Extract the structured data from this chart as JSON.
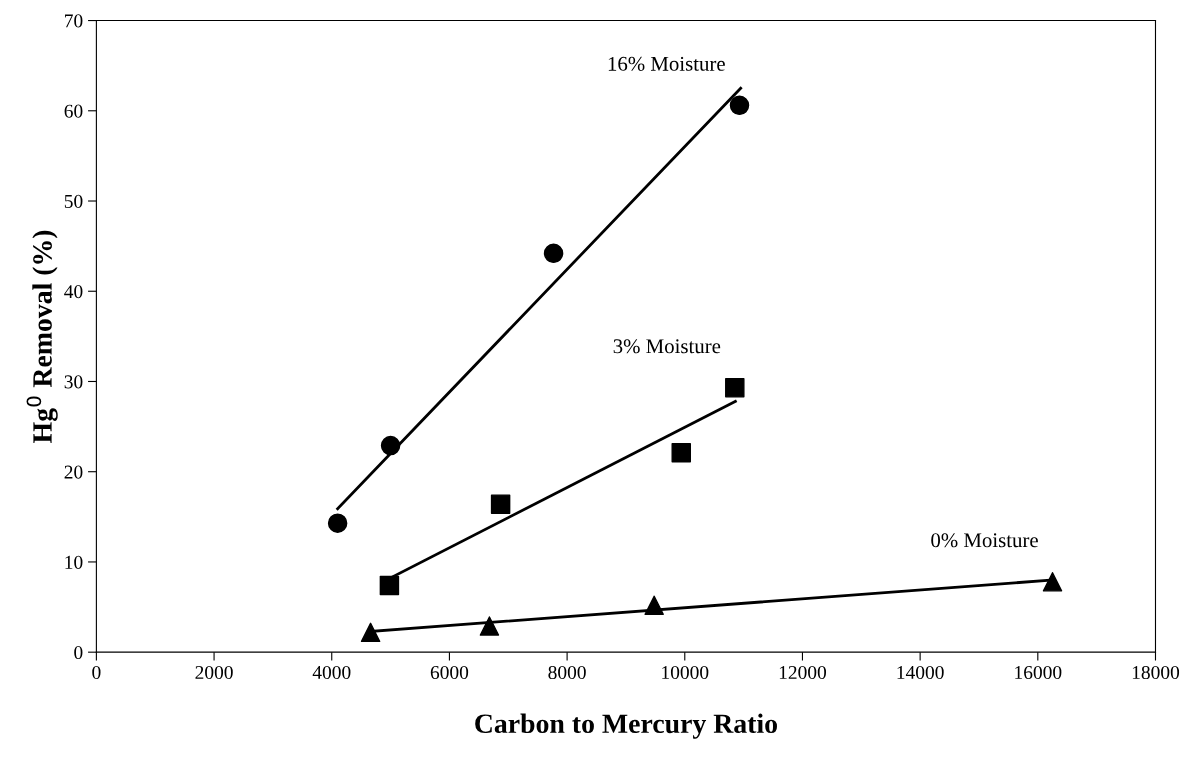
{
  "chart_data": {
    "type": "scatter",
    "xlabel": "Carbon to Mercury Ratio",
    "ylabel": "Hg$^{0}$ Removal (%)",
    "xlim": [
      0,
      18000
    ],
    "xticks": [
      0,
      2000,
      4000,
      6000,
      8000,
      10000,
      12000,
      14000,
      16000,
      18000
    ],
    "ylim": [
      0,
      70
    ],
    "yticks": [
      0,
      10,
      20,
      30,
      40,
      50,
      60,
      70
    ],
    "grid": false,
    "legend": false,
    "series": [
      {
        "name": "16% Moisture",
        "marker": "circle",
        "color": "#000000",
        "x": [
          4100,
          5000,
          7770,
          10930
        ],
        "values": [
          14.3,
          22.9,
          44.2,
          60.6
        ]
      },
      {
        "name": "3% Moisture",
        "marker": "square",
        "color": "#000000",
        "x": [
          4980,
          6870,
          9940,
          10850
        ],
        "values": [
          7.4,
          16.4,
          22.1,
          29.3
        ]
      },
      {
        "name": "0% Moisture",
        "marker": "triangle",
        "color": "#000000",
        "x": [
          4660,
          6680,
          9480,
          16250
        ],
        "values": [
          2.2,
          2.9,
          5.2,
          7.8
        ]
      },
      {
        "type": "line",
        "color": "#000000",
        "x": [
          4100,
          10950
        ],
        "values": [
          15.9,
          62.5
        ]
      },
      {
        "type": "line",
        "color": "#000000",
        "x": [
          4990,
          10860
        ],
        "values": [
          8.2,
          27.8
        ]
      },
      {
        "type": "line",
        "color": "#000000",
        "x": [
          4660,
          16250
        ],
        "values": [
          2.3,
          8.0
        ]
      }
    ]
  }
}
